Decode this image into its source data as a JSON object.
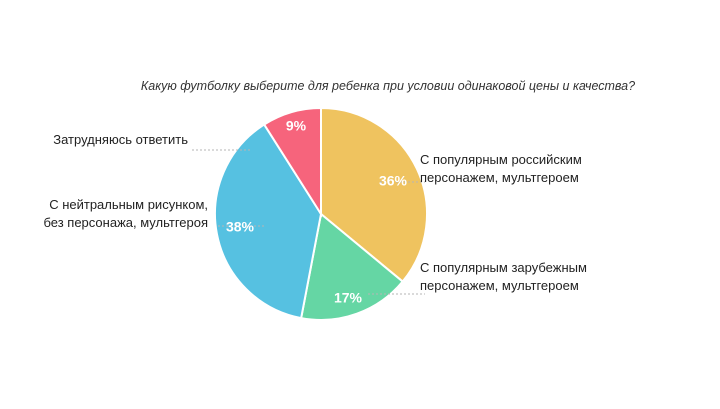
{
  "chart_data": {
    "type": "pie",
    "title": "Какую футболку выберите для ребенка при условии одинаковой цены и качества?",
    "slices": [
      {
        "label_lines": [
          "С популярным российским",
          "персонажем, мультгероем"
        ],
        "value": 36,
        "value_label": "36%",
        "color": "#EFC35F"
      },
      {
        "label_lines": [
          "С популярным зарубежным",
          "персонажем, мультгероем"
        ],
        "value": 17,
        "value_label": "17%",
        "color": "#65D6A4"
      },
      {
        "label_lines": [
          "С нейтральным рисунком,",
          "без персонажа, мультгероя"
        ],
        "value": 38,
        "value_label": "38%",
        "color": "#56C1E1"
      },
      {
        "label_lines": [
          "Затрудняюсь ответить"
        ],
        "value": 9,
        "value_label": "9%",
        "color": "#F6647C"
      }
    ]
  }
}
